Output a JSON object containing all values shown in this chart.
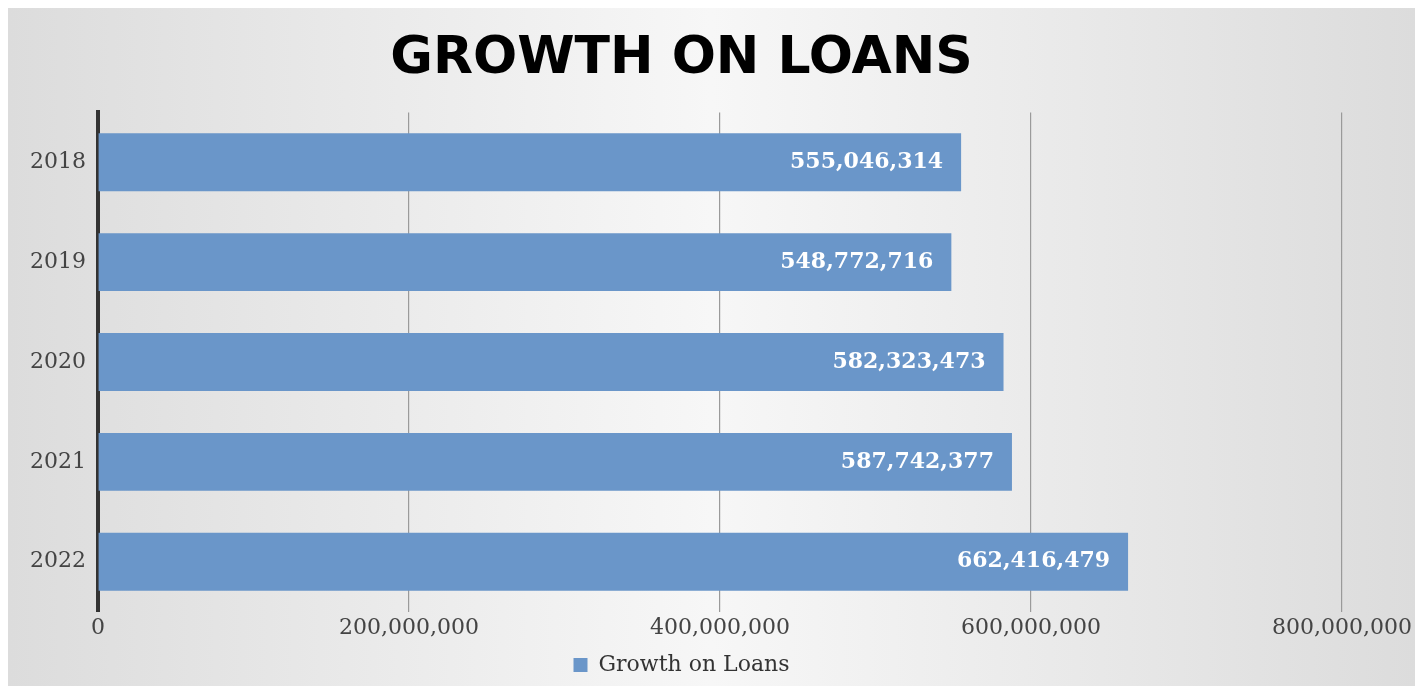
{
  "chart_data": {
    "type": "bar",
    "orientation": "horizontal",
    "title": "GROWTH ON LOANS",
    "categories": [
      "2018",
      "2019",
      "2020",
      "2021",
      "2022"
    ],
    "series": [
      {
        "name": "Growth on Loans",
        "color": "#6a96c9",
        "values": [
          555046314,
          548772716,
          582323473,
          587742377,
          662416479
        ],
        "value_labels": [
          "555,046,314",
          "548,772,716",
          "582,323,473",
          "587,742,377",
          "662,416,479"
        ]
      }
    ],
    "xlim": [
      0,
      800000000
    ],
    "xticks": [
      {
        "value": 0,
        "label": "0"
      },
      {
        "value": 200000000,
        "label": "200,000,000"
      },
      {
        "value": 400000000,
        "label": "400,000,000"
      },
      {
        "value": 600000000,
        "label": "600,000,000"
      },
      {
        "value": 800000000,
        "label": "800,000,000"
      }
    ],
    "grid": "x",
    "legend": "bottom"
  }
}
